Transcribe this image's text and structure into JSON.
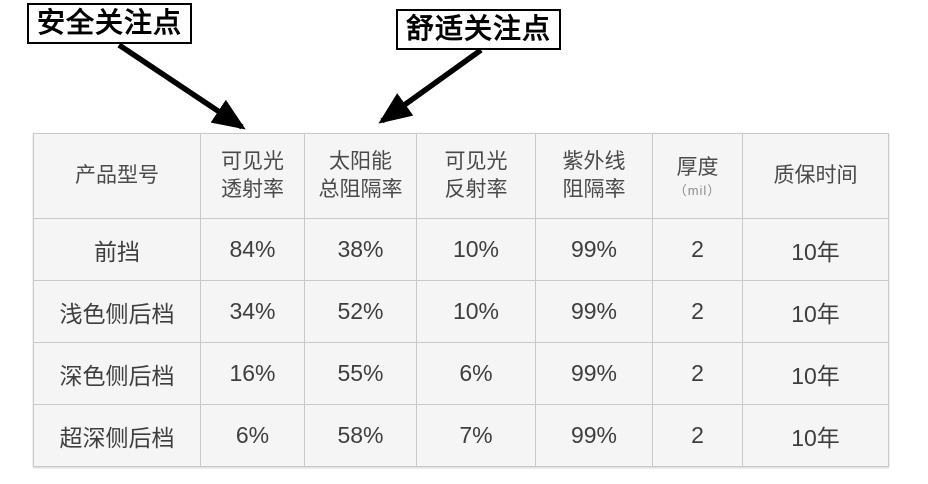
{
  "page": {
    "background": "#ffffff"
  },
  "callouts": {
    "safety": {
      "label": "安全关注点",
      "points_to_column": "可见光透射率"
    },
    "comfort": {
      "label": "舒适关注点",
      "points_to_column": "太阳能总阻隔率"
    }
  },
  "table": {
    "columns": [
      {
        "key": "product-model",
        "lines": [
          "产品型号"
        ]
      },
      {
        "key": "visible-light-transmittance",
        "lines": [
          "可见光",
          "透射率"
        ]
      },
      {
        "key": "total-solar-energy-rejection",
        "lines": [
          "太阳能",
          "总阻隔率"
        ]
      },
      {
        "key": "visible-light-reflectance",
        "lines": [
          "可见光",
          "反射率"
        ]
      },
      {
        "key": "uv-rejection",
        "lines": [
          "紫外线",
          "阻隔率"
        ]
      },
      {
        "key": "thickness",
        "lines": [
          "厚度"
        ],
        "sub": "（mil）"
      },
      {
        "key": "warranty",
        "lines": [
          "质保时间"
        ]
      }
    ],
    "rows": [
      {
        "cells": [
          "前挡",
          "84%",
          "38%",
          "10%",
          "99%",
          "2",
          "10年"
        ]
      },
      {
        "cells": [
          "浅色侧后档",
          "34%",
          "52%",
          "10%",
          "99%",
          "2",
          "10年"
        ]
      },
      {
        "cells": [
          "深色侧后档",
          "16%",
          "55%",
          "6%",
          "99%",
          "2",
          "10年"
        ]
      },
      {
        "cells": [
          "超深侧后档",
          "6%",
          "58%",
          "7%",
          "99%",
          "2",
          "10年"
        ]
      }
    ]
  },
  "colors": {
    "cell_background": "#f5f5f5",
    "cell_border": "#c9c9c9",
    "table_text": "#3e3e3e",
    "annotation": "#000000"
  },
  "chart_data": {
    "type": "table",
    "title": "",
    "columns": [
      "产品型号",
      "可见光透射率",
      "太阳能总阻隔率",
      "可见光反射率",
      "紫外线阻隔率",
      "厚度（mil）",
      "质保时间"
    ],
    "rows": [
      [
        "前挡",
        "84%",
        "38%",
        "10%",
        "99%",
        "2",
        "10年"
      ],
      [
        "浅色侧后档",
        "34%",
        "52%",
        "10%",
        "99%",
        "2",
        "10年"
      ],
      [
        "深色侧后档",
        "16%",
        "55%",
        "6%",
        "99%",
        "2",
        "10年"
      ],
      [
        "超深侧后档",
        "6%",
        "58%",
        "7%",
        "99%",
        "2",
        "10年"
      ]
    ],
    "annotations": [
      {
        "label": "安全关注点",
        "target_column": "可见光透射率"
      },
      {
        "label": "舒适关注点",
        "target_column": "太阳能总阻隔率"
      }
    ]
  }
}
